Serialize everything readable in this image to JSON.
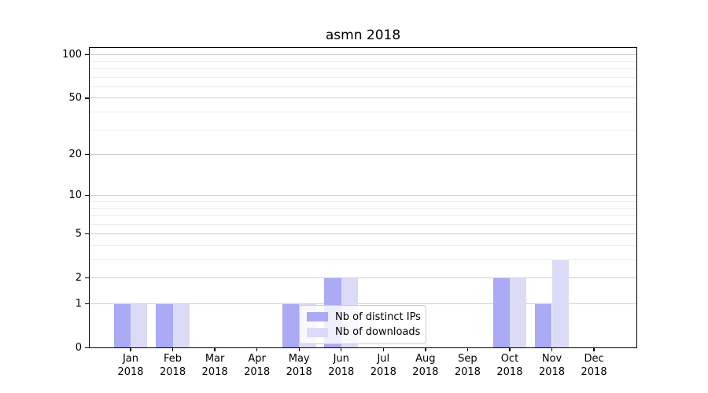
{
  "chart_data": {
    "type": "bar",
    "title": "asmn 2018",
    "categories": [
      "Jan",
      "Feb",
      "Mar",
      "Apr",
      "May",
      "Jun",
      "Jul",
      "Aug",
      "Sep",
      "Oct",
      "Nov",
      "Dec"
    ],
    "year": "2018",
    "series": [
      {
        "name": "Nb of distinct IPs",
        "color": "#aaaaf5",
        "values": [
          1,
          1,
          0,
          0,
          1,
          2,
          0,
          0,
          0,
          2,
          1,
          0
        ]
      },
      {
        "name": "Nb of downloads",
        "color": "#dbdbf8",
        "values": [
          1,
          1,
          0,
          0,
          1,
          2,
          0,
          0,
          0,
          2,
          3,
          0
        ]
      }
    ],
    "xlabel": "",
    "ylabel": "",
    "y_axis": {
      "scale": "log1p",
      "ticks": [
        0,
        1,
        2,
        5,
        10,
        20,
        50,
        100
      ],
      "minor_gridlines": [
        3,
        4,
        6,
        7,
        8,
        9,
        30,
        40,
        60,
        70,
        80,
        90
      ],
      "ylim": [
        0,
        113
      ]
    },
    "legend": {
      "position": "inside-lower-center",
      "entries": [
        "Nb of distinct IPs",
        "Nb of downloads"
      ]
    },
    "grid": true,
    "colors": {
      "major_grid": "#cfcfcf",
      "minor_grid": "#ececec",
      "spine": "#000000",
      "background": "#ffffff"
    }
  }
}
